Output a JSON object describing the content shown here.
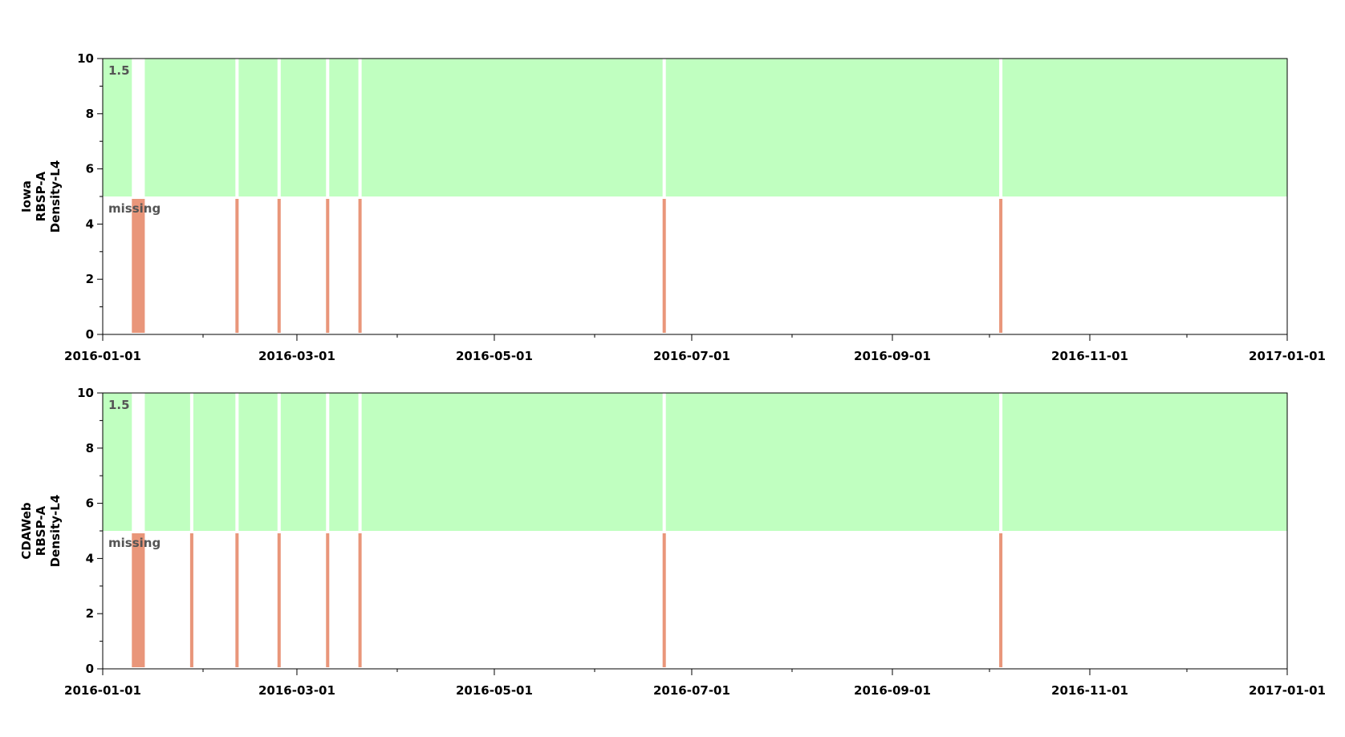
{
  "chart_data": [
    {
      "type": "bar",
      "ylabel": [
        "Iowa",
        "RBSP-A",
        "Density-L4"
      ],
      "ylim": [
        0,
        10
      ],
      "yticks": [
        0,
        2,
        4,
        6,
        8,
        10
      ],
      "xlim": [
        "2016-01-01",
        "2017-01-01"
      ],
      "xticks": [
        "2016-01-01",
        "2016-03-01",
        "2016-05-01",
        "2016-07-01",
        "2016-09-01",
        "2016-11-01",
        "2017-01-01"
      ],
      "band_labels": {
        "upper": "1.5",
        "lower": "missing"
      },
      "bands": [
        {
          "label": "1.5",
          "from": 5,
          "to": 10,
          "color": "#c0ffc0"
        },
        {
          "label": "missing",
          "from": 0,
          "to": 5,
          "color": "#e9967a"
        }
      ],
      "missing_intervals": [
        {
          "start": "2016-01-10",
          "end": "2016-01-13"
        },
        {
          "start": "2016-02-11",
          "end": "2016-02-11"
        },
        {
          "start": "2016-02-24",
          "end": "2016-02-24"
        },
        {
          "start": "2016-03-10",
          "end": "2016-03-10"
        },
        {
          "start": "2016-03-20",
          "end": "2016-03-20"
        },
        {
          "start": "2016-06-22",
          "end": "2016-06-22"
        },
        {
          "start": "2016-10-04",
          "end": "2016-10-04"
        }
      ]
    },
    {
      "type": "bar",
      "ylabel": [
        "CDAWeb",
        "RBSP-A",
        "Density-L4"
      ],
      "ylim": [
        0,
        10
      ],
      "yticks": [
        0,
        2,
        4,
        6,
        8,
        10
      ],
      "xlim": [
        "2016-01-01",
        "2017-01-01"
      ],
      "xticks": [
        "2016-01-01",
        "2016-03-01",
        "2016-05-01",
        "2016-07-01",
        "2016-09-01",
        "2016-11-01",
        "2017-01-01"
      ],
      "band_labels": {
        "upper": "1.5",
        "lower": "missing"
      },
      "bands": [
        {
          "label": "1.5",
          "from": 5,
          "to": 10,
          "color": "#c0ffc0"
        },
        {
          "label": "missing",
          "from": 0,
          "to": 5,
          "color": "#e9967a"
        }
      ],
      "missing_intervals": [
        {
          "start": "2016-01-10",
          "end": "2016-01-13"
        },
        {
          "start": "2016-01-28",
          "end": "2016-01-28"
        },
        {
          "start": "2016-02-11",
          "end": "2016-02-11"
        },
        {
          "start": "2016-02-24",
          "end": "2016-02-24"
        },
        {
          "start": "2016-03-10",
          "end": "2016-03-10"
        },
        {
          "start": "2016-03-20",
          "end": "2016-03-20"
        },
        {
          "start": "2016-06-22",
          "end": "2016-06-22"
        },
        {
          "start": "2016-10-04",
          "end": "2016-10-04"
        }
      ]
    }
  ]
}
